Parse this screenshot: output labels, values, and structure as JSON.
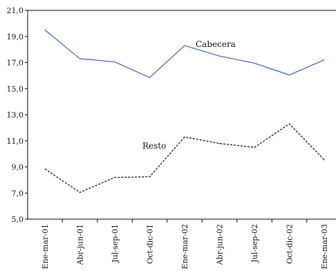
{
  "chart_data": {
    "type": "line",
    "categories": [
      "Ene-mar-01",
      "Abr-jun-01",
      "Jul-sep-01",
      "Oct-dic-01",
      "Ene-mar-02",
      "Abr-jun-02",
      "Jul-sep-02",
      "Oct-dic-02",
      "Ene-mar-03"
    ],
    "series": [
      {
        "name": "Cabecera",
        "color": "#3a5fa8",
        "dash": "solid",
        "values": [
          19.5,
          17.3,
          17.05,
          15.85,
          18.3,
          17.5,
          16.95,
          16.05,
          17.2
        ]
      },
      {
        "name": "Resto",
        "color": "#111111",
        "dash": "dotted",
        "values": [
          8.85,
          7.05,
          8.2,
          8.25,
          11.3,
          10.8,
          10.5,
          12.3,
          9.55
        ]
      }
    ],
    "ylim": [
      5,
      21
    ],
    "yticks": [
      "5,0",
      "7,0",
      "9,0",
      "11,0",
      "13,0",
      "15,0",
      "17,0",
      "19,0",
      "21,0"
    ],
    "title": "",
    "xlabel": "",
    "ylabel": "",
    "grid": false,
    "legend": "inline labels"
  }
}
